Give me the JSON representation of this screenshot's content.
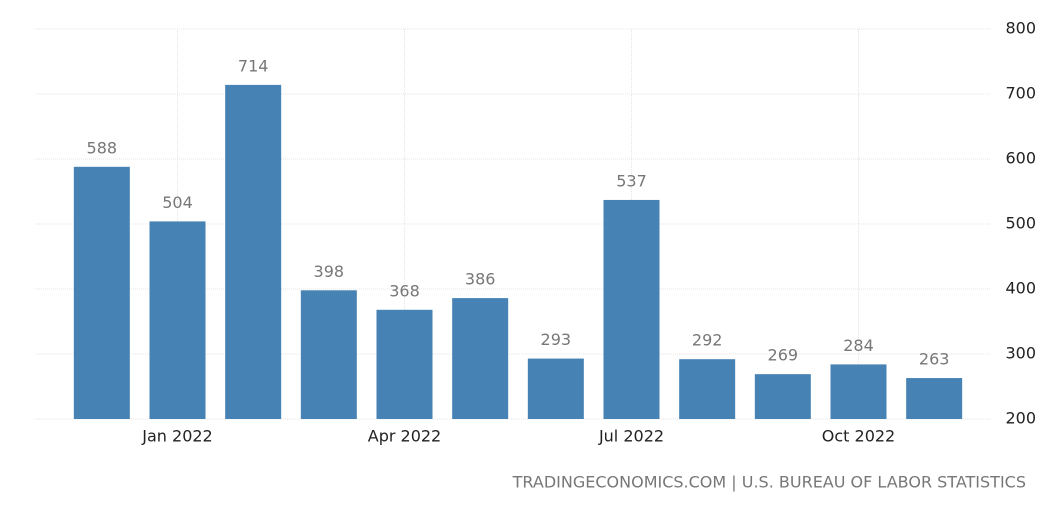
{
  "chart_data": {
    "type": "bar",
    "categories": [
      null,
      "Jan 2022",
      null,
      null,
      "Apr 2022",
      null,
      null,
      "Jul 2022",
      null,
      null,
      "Oct 2022",
      null
    ],
    "values": [
      588,
      504,
      714,
      398,
      368,
      386,
      293,
      537,
      292,
      269,
      284,
      263
    ],
    "color": "#4682b4",
    "ylim": [
      200,
      800
    ],
    "yticks": [
      200,
      300,
      400,
      500,
      600,
      700,
      800
    ],
    "grid": true,
    "source": "TRADINGECONOMICS.COM | U.S. BUREAU OF LABOR STATISTICS"
  }
}
